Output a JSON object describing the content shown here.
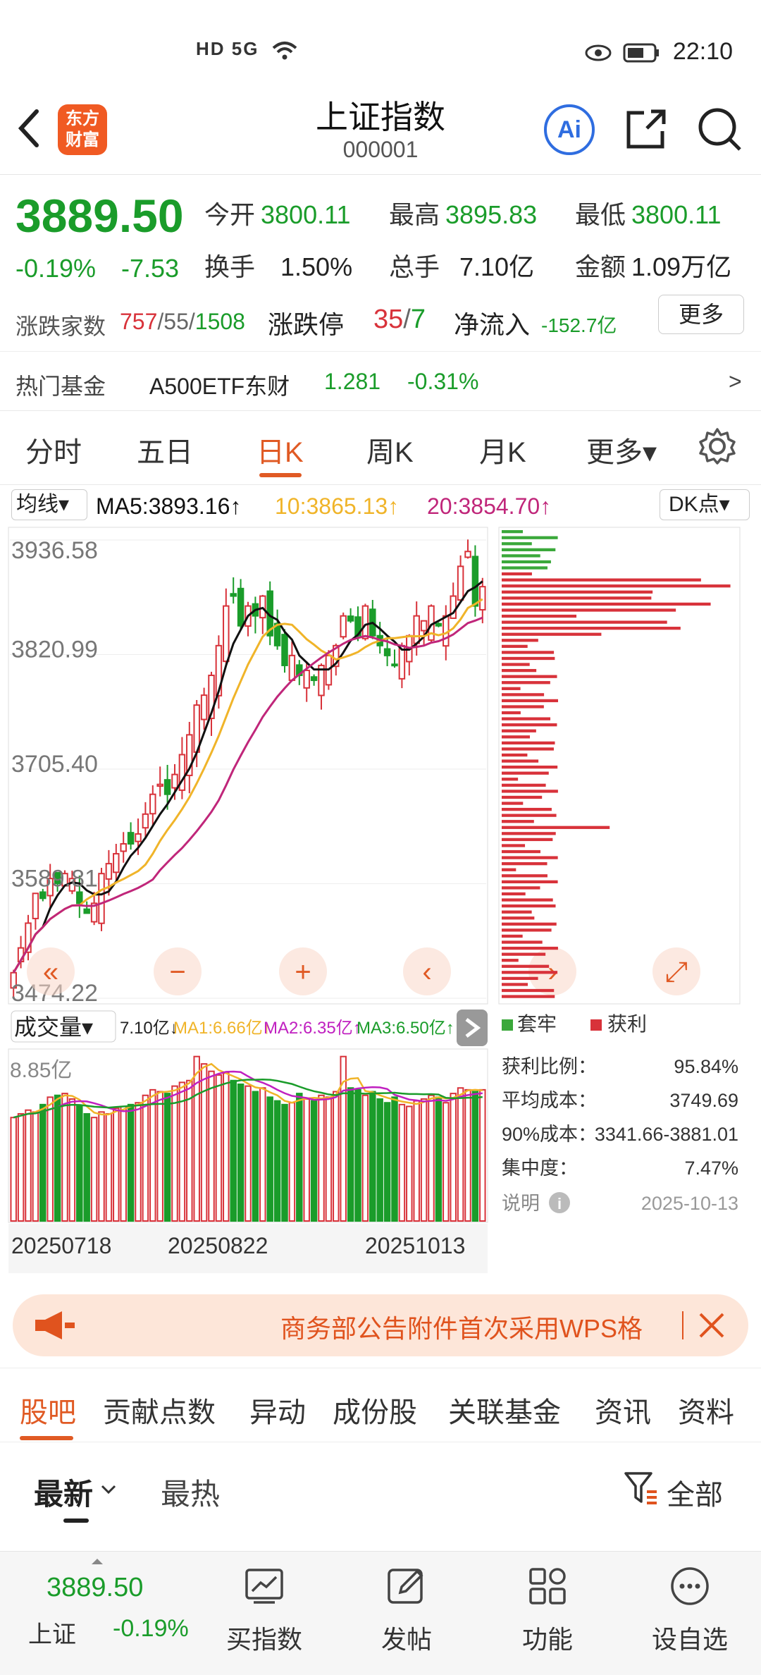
{
  "status_bar": {
    "time": "22:10",
    "signal": "HD 5G"
  },
  "header": {
    "title": "上证指数",
    "code": "000001",
    "logo_line1": "东方",
    "logo_line2": "财富",
    "ai_label": "Ai"
  },
  "quote": {
    "price": "3889.50",
    "change_pct": "-0.19%",
    "change": "-7.53",
    "open_label": "今开",
    "open": "3800.11",
    "high_label": "最高",
    "high": "3895.83",
    "low_label": "最低",
    "low": "3800.11",
    "turnover_label": "换手",
    "turnover": "1.50%",
    "volume_label": "总手",
    "volume": "7.10亿",
    "amount_label": "金额",
    "amount": "1.09万亿",
    "breadth_label": "涨跌家数",
    "breadth_up": "757",
    "breadth_sep1": "/",
    "breadth_flat": "55",
    "breadth_sep2": "/",
    "breadth_down": "1508",
    "limit_label": "涨跌停",
    "limit_up": "35",
    "limit_sep": "/",
    "limit_down": "7",
    "netflow_label": "净流入",
    "netflow": "-152.7亿",
    "more_label": "更多",
    "hot_fund_label": "热门基金",
    "hot_fund_name": "A500ETF东财",
    "hot_fund_price": "1.281",
    "hot_fund_change": "-0.31%",
    "hot_fund_arrow": ">"
  },
  "ktabs": [
    "分时",
    "五日",
    "日K",
    "周K",
    "月K",
    "更多▾"
  ],
  "ma_bar": {
    "select_label": "均线▾",
    "ma5": "MA5:3893.16↑",
    "ma10": "10:3865.13↑",
    "ma20": "20:3854.70↑",
    "dk_label": "DK点▾"
  },
  "colors": {
    "up": "#d8323a",
    "down": "#1a9c2a",
    "ma5": "#111111",
    "ma10": "#f0b429",
    "ma20": "#c0267a",
    "accent": "#e05a24"
  },
  "chart_data": [
    {
      "type": "candlestick",
      "y_ticks": [
        "3936.58",
        "3820.99",
        "3705.40",
        "3589.81",
        "3474.22"
      ],
      "ylim": [
        3474.22,
        3936.58
      ],
      "close": [
        3500,
        3525,
        3550,
        3580,
        3575,
        3595,
        3590,
        3600,
        3595,
        3570,
        3560,
        3570,
        3600,
        3610,
        3620,
        3630,
        3630,
        3640,
        3660,
        3680,
        3690,
        3680,
        3700,
        3720,
        3740,
        3770,
        3780,
        3800,
        3830,
        3870,
        3880,
        3850,
        3870,
        3860,
        3880,
        3840,
        3830,
        3810,
        3820,
        3800,
        3805,
        3795,
        3810,
        3820,
        3830,
        3860,
        3855,
        3840,
        3870,
        3840,
        3830,
        3820,
        3810,
        3830,
        3840,
        3860,
        3855,
        3870,
        3850,
        3860,
        3880,
        3910,
        3925,
        3870,
        3889.5
      ],
      "overlay_buttons": [
        "«",
        "−",
        "+",
        "‹",
        "›",
        "⤢"
      ]
    },
    {
      "type": "horizontal_bar",
      "legend": [
        {
          "name": "套牢",
          "color": "#3aa83a"
        },
        {
          "name": "获利",
          "color": "#d8323a"
        }
      ]
    },
    {
      "type": "bar",
      "title": "成交量▾",
      "vol_value": "7.10亿↓",
      "ma1": "MA1:6.66亿↑",
      "ma2": "MA2:6.35亿↑",
      "ma3": "MA3:6.50亿↑",
      "y_max_label": "8.85亿",
      "x_labels": [
        "20250718",
        "20250822",
        "20251013"
      ],
      "values": [
        5.6,
        5.8,
        6.0,
        5.9,
        6.3,
        6.7,
        6.8,
        6.9,
        6.6,
        6.2,
        5.8,
        5.6,
        5.9,
        5.8,
        6.1,
        6.2,
        6.3,
        6.4,
        6.8,
        7.1,
        7.0,
        6.9,
        7.3,
        7.5,
        7.6,
        8.9,
        8.5,
        8.1,
        7.9,
        8.0,
        7.6,
        7.4,
        7.3,
        7.0,
        7.2,
        6.7,
        6.5,
        6.3,
        6.4,
        6.9,
        6.6,
        6.5,
        6.8,
        6.7,
        7.0,
        8.9,
        7.2,
        7.1,
        6.8,
        7.0,
        6.6,
        6.4,
        6.7,
        6.3,
        6.2,
        6.5,
        6.6,
        6.8,
        6.7,
        6.4,
        6.9,
        7.2,
        7.1,
        7.0,
        7.1
      ]
    }
  ],
  "chip_stats": {
    "profit_ratio_label": "获利比例：",
    "profit_ratio": "95.84%",
    "avg_cost_label": "平均成本：",
    "avg_cost": "3749.69",
    "cost90_label": "90%成本：",
    "cost90": "3341.66-3881.01",
    "concentration_label": "集中度：",
    "concentration": "7.47%",
    "note_label": "说明",
    "date": "2025-10-13"
  },
  "banner": {
    "text": "商务部公告附件首次采用WPS格"
  },
  "section_tabs": [
    "股吧",
    "贡献点数",
    "异动",
    "成份股",
    "关联基金",
    "资讯",
    "资料"
  ],
  "sub_tabs": {
    "latest": "最新",
    "hot": "最热",
    "filter": "全部"
  },
  "bottom_bar": {
    "index_price": "3889.50",
    "index_name": "上证",
    "index_change": "-0.19%",
    "buy_index": "买指数",
    "post": "发帖",
    "function": "功能",
    "add_watch": "设自选"
  }
}
